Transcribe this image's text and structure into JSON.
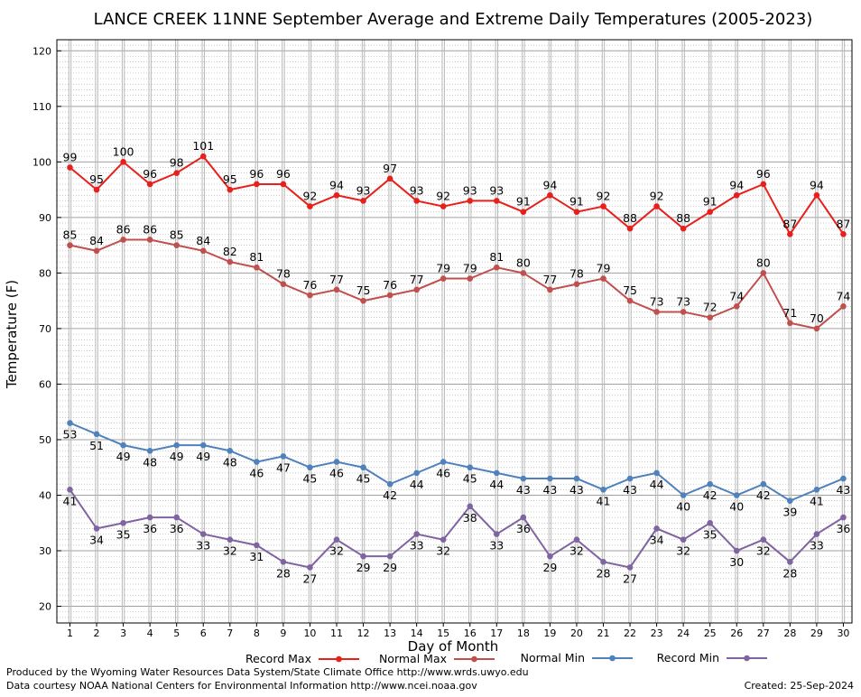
{
  "chart_data": {
    "type": "line",
    "title": "LANCE CREEK 11NNE September Average and Extreme Daily Temperatures (2005-2023)",
    "xlabel": "Day of Month",
    "ylabel": "Temperature (F)",
    "ylim": [
      17,
      122
    ],
    "yticks": [
      20,
      30,
      40,
      50,
      60,
      70,
      80,
      90,
      100,
      110,
      120
    ],
    "grid": true,
    "legend_position": "bottom",
    "x": [
      1,
      2,
      3,
      4,
      5,
      6,
      7,
      8,
      9,
      10,
      11,
      12,
      13,
      14,
      15,
      16,
      17,
      18,
      19,
      20,
      21,
      22,
      23,
      24,
      25,
      26,
      27,
      28,
      29,
      30
    ],
    "series": [
      {
        "name": "Record Max",
        "color": "#e8201c",
        "label_pos": "above",
        "values": [
          99,
          95,
          100,
          96,
          98,
          101,
          95,
          96,
          96,
          92,
          94,
          93,
          97,
          93,
          92,
          93,
          93,
          91,
          94,
          91,
          92,
          88,
          92,
          88,
          91,
          94,
          96,
          87,
          94,
          87
        ]
      },
      {
        "name": "Normal Max",
        "color": "#c0504d",
        "label_pos": "above",
        "values": [
          85,
          84,
          86,
          86,
          85,
          84,
          82,
          81,
          78,
          76,
          77,
          75,
          76,
          77,
          79,
          79,
          81,
          80,
          77,
          78,
          79,
          75,
          73,
          73,
          72,
          74,
          80,
          71,
          70,
          74
        ]
      },
      {
        "name": "Normal Min",
        "color": "#4f81bd",
        "label_pos": "below",
        "values": [
          53,
          51,
          49,
          48,
          49,
          49,
          48,
          46,
          47,
          45,
          46,
          45,
          42,
          44,
          46,
          45,
          44,
          43,
          43,
          43,
          41,
          43,
          44,
          40,
          42,
          40,
          42,
          39,
          41,
          43
        ]
      },
      {
        "name": "Record Min",
        "color": "#8064a2",
        "label_pos": "below",
        "values": [
          41,
          34,
          35,
          36,
          36,
          33,
          32,
          31,
          28,
          27,
          32,
          29,
          29,
          33,
          32,
          38,
          33,
          36,
          29,
          32,
          28,
          27,
          34,
          32,
          35,
          30,
          32,
          28,
          33,
          36
        ]
      }
    ]
  },
  "footer": {
    "credit_line1": "Produced by the Wyoming Water Resources Data System/State Climate Office http://www.wrds.uwyo.edu",
    "credit_line2": "Data courtesy NOAA National Centers for Environmental Information http://www.ncei.noaa.gov",
    "created": "Created:  25-Sep-2024"
  }
}
